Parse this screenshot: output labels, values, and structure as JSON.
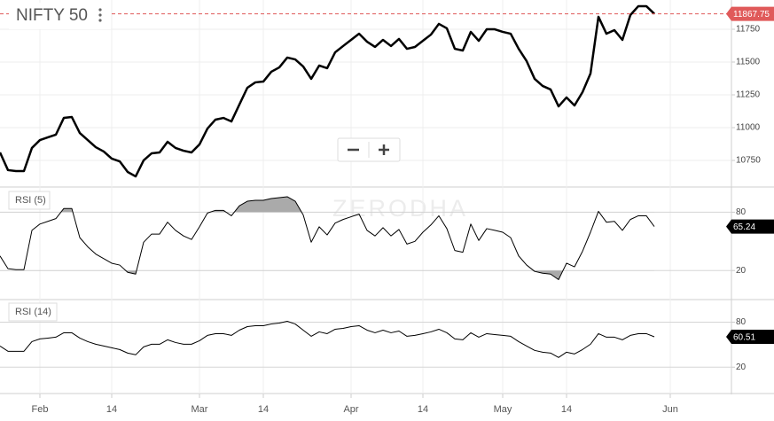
{
  "watermark": "ZERODHA",
  "chart_data": [
    {
      "type": "line",
      "title": "NIFTY 50",
      "categories": [
        null,
        null,
        null,
        null,
        null,
        "Feb",
        null,
        null,
        null,
        null,
        null,
        null,
        null,
        null,
        "14",
        null,
        null,
        null,
        null,
        null,
        null,
        null,
        null,
        null,
        null,
        "Mar",
        null,
        null,
        null,
        null,
        null,
        null,
        null,
        "14",
        null,
        null,
        null,
        null,
        null,
        null,
        null,
        null,
        null,
        null,
        "Apr",
        null,
        null,
        null,
        null,
        null,
        null,
        null,
        null,
        "14",
        null,
        null,
        null,
        null,
        null,
        null,
        null,
        null,
        null,
        "May",
        null,
        null,
        null,
        null,
        null,
        null,
        null,
        "14",
        null,
        null,
        null,
        null,
        null,
        null,
        null,
        null,
        null,
        null,
        null,
        null,
        "Jun"
      ],
      "series": [
        {
          "name": "NIFTY 50",
          "color": "#000000",
          "values": [
            10811,
            10676,
            10669,
            10669,
            10845,
            10905,
            10926,
            10946,
            11074,
            11081,
            10959,
            10905,
            10851,
            10818,
            10764,
            10743,
            10662,
            10628,
            10750,
            10804,
            10811,
            10892,
            10845,
            10824,
            10811,
            10872,
            10993,
            11061,
            11074,
            11047,
            11176,
            11304,
            11345,
            11351,
            11426,
            11459,
            11534,
            11520,
            11466,
            11372,
            11473,
            11453,
            11574,
            11622,
            11669,
            11716,
            11655,
            11615,
            11669,
            11622,
            11676,
            11601,
            11615,
            11662,
            11709,
            11791,
            11757,
            11601,
            11588,
            11730,
            11662,
            11750,
            11750,
            11730,
            11716,
            11601,
            11507,
            11372,
            11318,
            11291,
            11162,
            11230,
            11169,
            11270,
            11412,
            11845,
            11716,
            11743,
            11669,
            11858,
            11926,
            11926,
            11867.75,
            null,
            null
          ]
        }
      ],
      "ylim": [
        10554,
        11973
      ],
      "yticks": [
        10750,
        11000,
        11250,
        11500,
        11750
      ],
      "grid": true,
      "last_color": "#e05a5a",
      "last_line": true,
      "line_width": 2.5
    },
    {
      "type": "line",
      "title": "RSI (5)",
      "series": [
        {
          "name": "RSI (5)",
          "color": "#000000",
          "values": [
            35.0,
            21.9,
            20.9,
            20.9,
            61.3,
            67.8,
            70.6,
            73.4,
            83.8,
            83.8,
            53.8,
            44.4,
            36.9,
            32.2,
            27.5,
            25.6,
            18.1,
            16.3,
            49.1,
            57.5,
            57.5,
            69.7,
            61.3,
            55.6,
            51.9,
            65.0,
            79.1,
            81.9,
            81.9,
            76.3,
            86.6,
            91.3,
            92.2,
            92.2,
            94.1,
            95.0,
            95.9,
            91.3,
            77.2,
            49.1,
            65.0,
            56.6,
            68.8,
            72.5,
            75.3,
            78.1,
            61.3,
            55.6,
            64.1,
            55.6,
            62.2,
            47.2,
            50.0,
            59.4,
            66.9,
            76.3,
            63.1,
            40.6,
            38.8,
            67.8,
            50.9,
            63.1,
            61.3,
            59.4,
            53.8,
            35.0,
            25.6,
            19.1,
            17.2,
            16.3,
            10.6,
            27.5,
            23.8,
            39.7,
            59.4,
            80.9,
            69.7,
            70.6,
            61.3,
            72.5,
            76.3,
            76.3,
            65.24,
            null,
            null
          ]
        }
      ],
      "ylim": [
        -9,
        105
      ],
      "yticks": [
        20,
        80
      ],
      "grid": true,
      "shade": true,
      "shade_color": "#aaaaaa",
      "last_color": "#000000",
      "last_line": false,
      "line_width": 1
    },
    {
      "type": "line",
      "title": "RSI (14)",
      "series": [
        {
          "name": "RSI (14)",
          "color": "#000000",
          "values": [
            48.2,
            41.2,
            41.2,
            41.2,
            54.1,
            57.7,
            58.8,
            60.0,
            65.9,
            65.9,
            58.8,
            54.1,
            50.6,
            48.2,
            45.9,
            43.5,
            38.8,
            36.5,
            47.1,
            50.6,
            50.6,
            56.5,
            52.9,
            50.6,
            50.6,
            55.3,
            62.4,
            64.7,
            64.7,
            62.4,
            69.4,
            74.1,
            75.3,
            75.3,
            77.6,
            78.8,
            81.2,
            77.6,
            69.4,
            61.2,
            67.1,
            64.7,
            70.6,
            71.8,
            74.1,
            75.3,
            69.4,
            65.9,
            69.4,
            65.9,
            68.2,
            61.2,
            62.4,
            64.7,
            67.1,
            70.6,
            65.9,
            57.7,
            56.5,
            65.9,
            60.0,
            64.7,
            63.5,
            62.4,
            61.2,
            54.1,
            48.2,
            42.4,
            40.0,
            38.8,
            32.9,
            40.0,
            37.6,
            43.5,
            50.6,
            64.7,
            60.0,
            60.0,
            56.5,
            62.4,
            64.7,
            64.7,
            60.51,
            null,
            null
          ]
        }
      ],
      "ylim": [
        -14,
        109
      ],
      "yticks": [
        20,
        80
      ],
      "grid": true,
      "shade": false,
      "last_color": "#000000",
      "last_line": false,
      "line_width": 1
    }
  ]
}
